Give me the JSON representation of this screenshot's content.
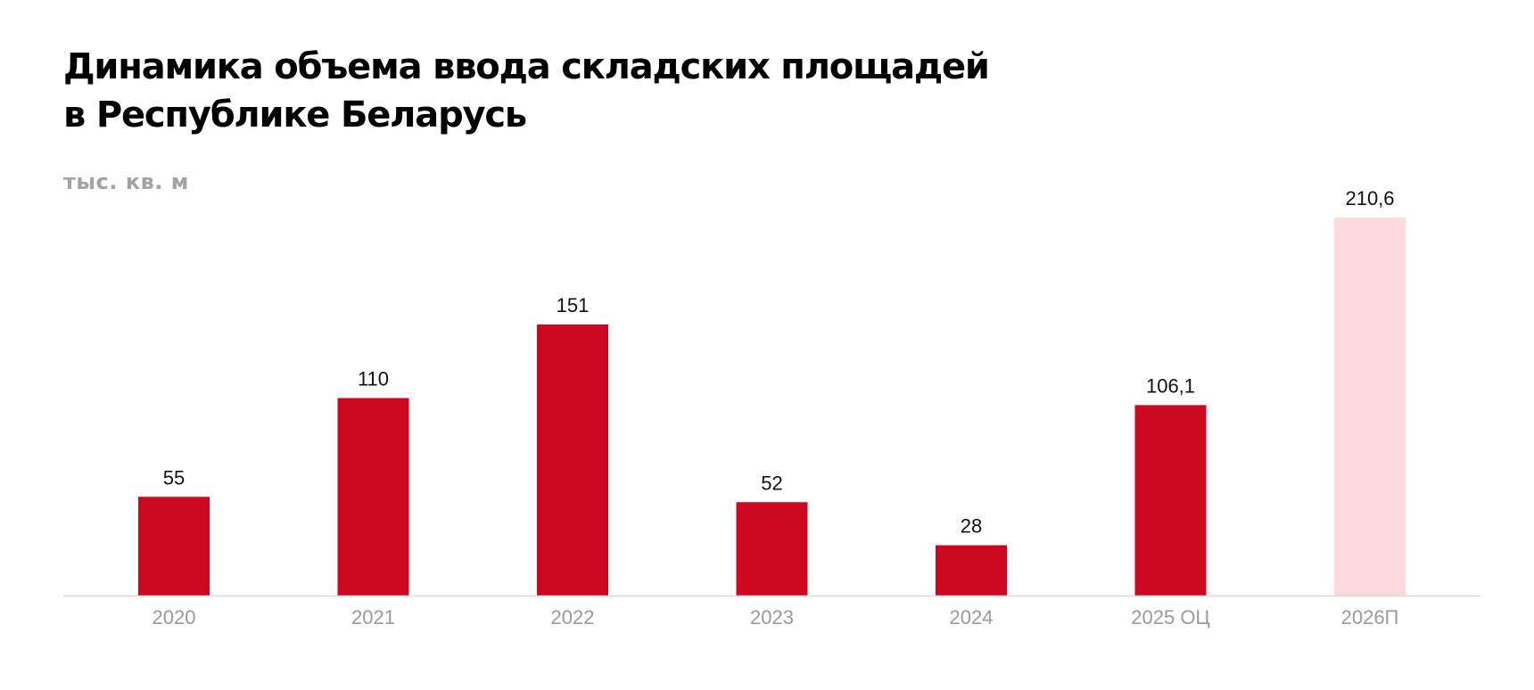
{
  "title_lines": [
    "Динамика объема ввода складских площадей",
    "в Республике Беларусь"
  ],
  "unit": "тыс. кв. м",
  "colors": {
    "bar_actual": "#cc0820",
    "bar_forecast": "#fdd8dc",
    "baseline": "#d9d9d9",
    "value_text": "#111111",
    "tick_text": "#9a9a9a",
    "unit_text": "#a3a3a3"
  },
  "chart_data": {
    "type": "bar",
    "title": "Динамика объема ввода складских площадей в Республике Беларусь",
    "ylabel": "тыс. кв. м",
    "xlabel": "",
    "categories": [
      "2020",
      "2021",
      "2022",
      "2023",
      "2024",
      "2025 ОЦ",
      "2026П"
    ],
    "values": [
      55,
      110,
      151,
      52,
      28,
      106.1,
      210.6
    ],
    "value_labels": [
      "55",
      "110",
      "151",
      "52",
      "28",
      "106,1",
      "210,6"
    ],
    "bar_styles": [
      "actual",
      "actual",
      "actual",
      "actual",
      "actual",
      "actual",
      "forecast"
    ],
    "ylim": [
      0,
      210.6
    ],
    "grid": false,
    "legend": "none"
  }
}
